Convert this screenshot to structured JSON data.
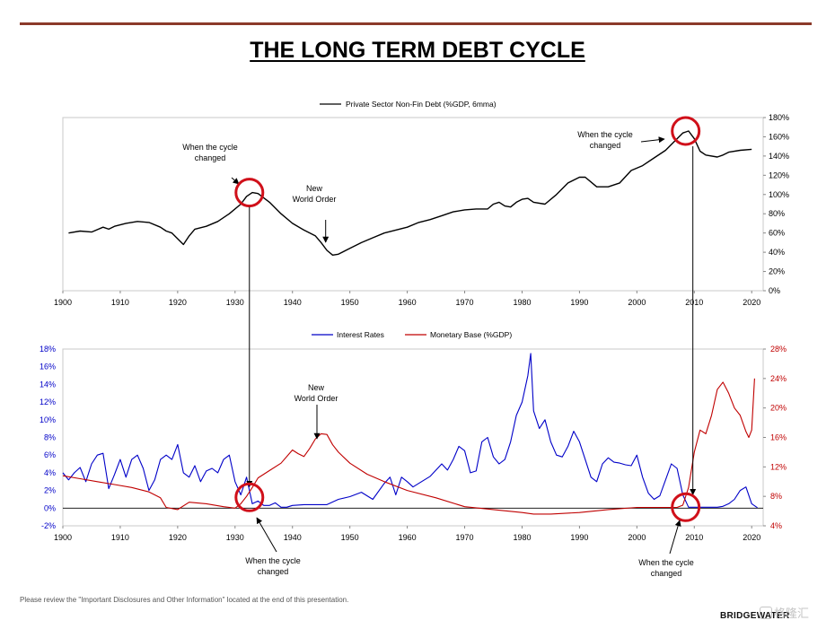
{
  "title": "THE LONG TERM DEBT CYCLE",
  "footer": "Please review the \"Important Disclosures and Other Information\" located at the end of this presentation.",
  "brand": "BRIDGEWATER",
  "watermark": "格隆汇",
  "colors": {
    "rule": "#8b3a2a",
    "debt": "#000000",
    "rates": "#0000c8",
    "monetary": "#c00000",
    "circle": "#d0101a"
  },
  "chart_data": [
    {
      "type": "line",
      "legend": [
        "Private Sector Non-Fin Debt (%GDP, 6mma)"
      ],
      "xlim": [
        1900,
        2022
      ],
      "ylim": [
        0,
        180
      ],
      "xticks": [
        "1900",
        "1910",
        "1920",
        "1930",
        "1940",
        "1950",
        "1960",
        "1970",
        "1980",
        "1990",
        "2000",
        "2010",
        "2020"
      ],
      "yticks": [
        "0%",
        "20%",
        "40%",
        "60%",
        "80%",
        "100%",
        "120%",
        "140%",
        "160%",
        "180%"
      ],
      "series": [
        {
          "name": "Private Sector Non-Fin Debt (%GDP, 6mma)",
          "x": [
            1901,
            1903,
            1905,
            1907,
            1908,
            1909,
            1911,
            1913,
            1915,
            1917,
            1918,
            1919,
            1920,
            1921,
            1922,
            1923,
            1925,
            1927,
            1929,
            1931,
            1932,
            1933,
            1934,
            1936,
            1938,
            1940,
            1942,
            1944,
            1945,
            1946,
            1947,
            1948,
            1950,
            1952,
            1954,
            1956,
            1958,
            1960,
            1962,
            1964,
            1966,
            1968,
            1970,
            1972,
            1974,
            1975,
            1976,
            1977,
            1978,
            1979,
            1980,
            1981,
            1982,
            1984,
            1986,
            1988,
            1990,
            1991,
            1992,
            1993,
            1995,
            1997,
            1999,
            2001,
            2003,
            2005,
            2007,
            2008,
            2009,
            2010,
            2011,
            2012,
            2014,
            2015,
            2016,
            2018,
            2020
          ],
          "values": [
            60,
            62,
            61,
            66,
            64,
            67,
            70,
            72,
            71,
            66,
            62,
            60,
            54,
            48,
            57,
            64,
            67,
            72,
            80,
            90,
            98,
            102,
            101,
            92,
            80,
            70,
            63,
            57,
            50,
            42,
            37,
            38,
            44,
            50,
            55,
            60,
            63,
            66,
            71,
            74,
            78,
            82,
            84,
            85,
            85,
            90,
            92,
            88,
            87,
            92,
            95,
            96,
            92,
            90,
            100,
            112,
            118,
            118,
            113,
            108,
            108,
            112,
            125,
            130,
            138,
            146,
            158,
            164,
            166,
            158,
            145,
            141,
            139,
            141,
            144,
            146,
            147
          ]
        }
      ],
      "annotations": [
        {
          "text": "When the cycle changed",
          "x": 1932.5
        },
        {
          "text": "New World Order",
          "x": 1945
        },
        {
          "text": "When the cycle changed",
          "x": 2008.5
        }
      ]
    },
    {
      "type": "line",
      "legend": [
        "Interest Rates",
        "Monetary Base (%GDP)"
      ],
      "xlim": [
        1900,
        2022
      ],
      "ylim_left": [
        -2,
        18
      ],
      "ylim_right": [
        4,
        28
      ],
      "xticks": [
        "1900",
        "1910",
        "1920",
        "1930",
        "1940",
        "1950",
        "1960",
        "1970",
        "1980",
        "1990",
        "2000",
        "2010",
        "2020"
      ],
      "yticks_left": [
        "-2%",
        "0%",
        "2%",
        "4%",
        "6%",
        "8%",
        "10%",
        "12%",
        "14%",
        "16%",
        "18%"
      ],
      "yticks_right": [
        "4%",
        "8%",
        "12%",
        "16%",
        "20%",
        "24%",
        "28%"
      ],
      "series": [
        {
          "name": "Interest Rates",
          "axis": "left",
          "x": [
            1900,
            1901,
            1902,
            1903,
            1904,
            1905,
            1906,
            1907,
            1908,
            1909,
            1910,
            1911,
            1912,
            1913,
            1914,
            1915,
            1916,
            1917,
            1918,
            1919,
            1920,
            1921,
            1922,
            1923,
            1924,
            1925,
            1926,
            1927,
            1928,
            1929,
            1930,
            1931,
            1932,
            1933,
            1934,
            1935,
            1936,
            1937,
            1938,
            1939,
            1940,
            1942,
            1944,
            1946,
            1948,
            1950,
            1952,
            1954,
            1956,
            1957,
            1958,
            1959,
            1960,
            1961,
            1962,
            1964,
            1966,
            1967,
            1968,
            1969,
            1970,
            1971,
            1972,
            1973,
            1974,
            1975,
            1976,
            1977,
            1978,
            1979,
            1980,
            1981,
            1981.5,
            1982,
            1983,
            1984,
            1985,
            1986,
            1987,
            1988,
            1989,
            1990,
            1991,
            1992,
            1993,
            1994,
            1995,
            1996,
            1997,
            1998,
            1999,
            2000,
            2001,
            2002,
            2003,
            2004,
            2005,
            2006,
            2007,
            2008,
            2009,
            2010,
            2012,
            2014,
            2015,
            2016,
            2017,
            2018,
            2019,
            2020,
            2021
          ],
          "values": [
            4,
            3.2,
            4,
            4.6,
            3,
            5,
            6,
            6.2,
            2.2,
            3.8,
            5.5,
            3.5,
            5.5,
            6,
            4.5,
            2,
            3.2,
            5.5,
            6,
            5.5,
            7.2,
            4,
            3.5,
            4.8,
            3,
            4.2,
            4.5,
            4,
            5.5,
            6,
            3,
            1.5,
            3.5,
            0.5,
            0.8,
            0.3,
            0.3,
            0.6,
            0.1,
            0.1,
            0.3,
            0.4,
            0.4,
            0.4,
            1,
            1.3,
            1.8,
            1,
            2.8,
            3.5,
            1.5,
            3.5,
            3,
            2.4,
            2.8,
            3.6,
            5,
            4.3,
            5.5,
            7,
            6.5,
            4,
            4.2,
            7.5,
            8,
            5.8,
            5,
            5.5,
            7.5,
            10.5,
            12,
            15,
            17.5,
            11,
            9,
            10,
            7.5,
            6,
            5.8,
            7,
            8.7,
            7.5,
            5.5,
            3.5,
            3,
            5,
            5.7,
            5.2,
            5.1,
            4.9,
            4.8,
            6,
            3.5,
            1.7,
            1,
            1.4,
            3.2,
            5,
            4.5,
            1.5,
            0.1,
            0.1,
            0.1,
            0.1,
            0.2,
            0.5,
            1,
            2,
            2.4,
            0.5,
            0.05
          ]
        },
        {
          "name": "Monetary Base (%GDP)",
          "axis": "right",
          "x": [
            1900,
            1903,
            1906,
            1909,
            1912,
            1915,
            1917,
            1918,
            1920,
            1922,
            1925,
            1928,
            1930,
            1931,
            1932,
            1933,
            1934,
            1936,
            1938,
            1940,
            1941,
            1942,
            1943,
            1944,
            1945,
            1946,
            1947,
            1948,
            1950,
            1953,
            1956,
            1960,
            1965,
            1970,
            1975,
            1980,
            1982,
            1985,
            1990,
            1995,
            2000,
            2005,
            2007,
            2008,
            2009,
            2010,
            2011,
            2012,
            2013,
            2014,
            2015,
            2016,
            2017,
            2018,
            2019,
            2019.5,
            2020,
            2020.5
          ],
          "values": [
            10.8,
            10.4,
            10,
            9.6,
            9.2,
            8.6,
            7.8,
            6.5,
            6.2,
            7.2,
            7,
            6.6,
            6.4,
            7,
            8,
            9.2,
            10.5,
            11.5,
            12.5,
            14.3,
            13.8,
            13.4,
            14.5,
            15.8,
            16.5,
            16.4,
            15,
            14,
            12.5,
            11,
            10,
            8.8,
            7.8,
            6.6,
            6.2,
            5.8,
            5.6,
            5.6,
            5.8,
            6.2,
            6.5,
            6.5,
            6.5,
            6.8,
            9.2,
            14,
            17,
            16.5,
            19,
            22.5,
            23.5,
            22,
            20,
            19,
            16.8,
            16,
            17,
            24
          ]
        }
      ],
      "annotations": [
        {
          "text": "New World Order",
          "x": 1945
        },
        {
          "text": "When the cycle changed",
          "x": 1932.5
        },
        {
          "text": "When the cycle changed",
          "x": 2008.5
        }
      ]
    }
  ]
}
